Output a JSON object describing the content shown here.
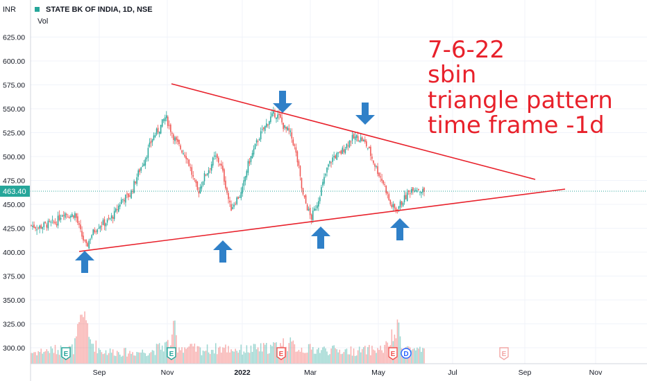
{
  "chart_data": {
    "type": "candlestick",
    "title": "STATE BK OF INDIA, 1D, NSE",
    "currency": "INR",
    "volume_label": "Vol",
    "ylim": [
      280,
      648
    ],
    "y_ticks": [
      300,
      325,
      350,
      375,
      400,
      425,
      450,
      475,
      500,
      525,
      550,
      575,
      600,
      625
    ],
    "y_tick_labels": [
      "300.00",
      "325.00",
      "350.00",
      "375.00",
      "400.00",
      "425.00",
      "450.00",
      "475.00",
      "500.00",
      "525.00",
      "550.00",
      "575.00",
      "600.00",
      "625.00"
    ],
    "x_labels": [
      "Sep",
      "Nov",
      "2022",
      "Mar",
      "May",
      "Jul",
      "Sep",
      "Nov"
    ],
    "last_price": 463.4,
    "last_price_label": "463.40",
    "price_path": [
      [
        0,
        428
      ],
      [
        10,
        426
      ],
      [
        22,
        429
      ],
      [
        35,
        431
      ],
      [
        45,
        442
      ],
      [
        55,
        438
      ],
      [
        62,
        440
      ],
      [
        70,
        420
      ],
      [
        78,
        405
      ],
      [
        85,
        418
      ],
      [
        95,
        428
      ],
      [
        108,
        432
      ],
      [
        118,
        440
      ],
      [
        128,
        455
      ],
      [
        140,
        460
      ],
      [
        150,
        480
      ],
      [
        162,
        500
      ],
      [
        172,
        520
      ],
      [
        182,
        530
      ],
      [
        190,
        542
      ],
      [
        198,
        527
      ],
      [
        205,
        515
      ],
      [
        212,
        508
      ],
      [
        220,
        500
      ],
      [
        228,
        480
      ],
      [
        236,
        462
      ],
      [
        244,
        478
      ],
      [
        252,
        488
      ],
      [
        260,
        500
      ],
      [
        268,
        492
      ],
      [
        275,
        470
      ],
      [
        282,
        445
      ],
      [
        290,
        455
      ],
      [
        298,
        462
      ],
      [
        306,
        490
      ],
      [
        314,
        505
      ],
      [
        322,
        520
      ],
      [
        330,
        530
      ],
      [
        338,
        540
      ],
      [
        345,
        545
      ],
      [
        352,
        540
      ],
      [
        358,
        530
      ],
      [
        366,
        525
      ],
      [
        372,
        512
      ],
      [
        378,
        490
      ],
      [
        384,
        460
      ],
      [
        390,
        448
      ],
      [
        396,
        435
      ],
      [
        404,
        450
      ],
      [
        412,
        470
      ],
      [
        420,
        490
      ],
      [
        428,
        500
      ],
      [
        436,
        502
      ],
      [
        444,
        510
      ],
      [
        452,
        518
      ],
      [
        460,
        520
      ],
      [
        468,
        518
      ],
      [
        476,
        510
      ],
      [
        484,
        495
      ],
      [
        492,
        482
      ],
      [
        500,
        470
      ],
      [
        508,
        450
      ],
      [
        516,
        444
      ],
      [
        524,
        452
      ],
      [
        532,
        460
      ],
      [
        540,
        468
      ],
      [
        548,
        466
      ],
      [
        556,
        463
      ]
    ],
    "volume_path": [
      [
        0,
        18
      ],
      [
        30,
        22
      ],
      [
        60,
        24
      ],
      [
        78,
        95
      ],
      [
        80,
        40
      ],
      [
        100,
        20
      ],
      [
        140,
        18
      ],
      [
        170,
        20
      ],
      [
        200,
        35
      ],
      [
        203,
        70
      ],
      [
        206,
        28
      ],
      [
        240,
        22
      ],
      [
        270,
        25
      ],
      [
        300,
        22
      ],
      [
        340,
        26
      ],
      [
        360,
        34
      ],
      [
        380,
        24
      ],
      [
        420,
        22
      ],
      [
        460,
        20
      ],
      [
        500,
        24
      ],
      [
        520,
        55
      ],
      [
        524,
        28
      ],
      [
        556,
        18
      ]
    ],
    "trendlines": [
      {
        "from": [
          "late Aug 2021",
          400
        ],
        "to": [
          "mid Sep 2022",
          464
        ]
      },
      {
        "from": [
          "mid Oct 2021",
          578
        ],
        "to": [
          "early Sep 2022",
          477
        ]
      }
    ],
    "arrows": [
      {
        "direction": "up"
      },
      {
        "direction": "up"
      },
      {
        "direction": "up"
      },
      {
        "direction": "up"
      },
      {
        "direction": "down"
      },
      {
        "direction": "down"
      }
    ],
    "event_markers": [
      {
        "letter": "E",
        "kind": "earnings-past"
      },
      {
        "letter": "E",
        "kind": "earnings-past"
      },
      {
        "letter": "E",
        "kind": "earnings-red"
      },
      {
        "letter": "E",
        "kind": "earnings-red"
      },
      {
        "letter": "D",
        "kind": "dividend"
      },
      {
        "letter": "E",
        "kind": "earnings-future"
      }
    ],
    "annotation_lines": [
      "7-6-22",
      "sbin",
      "triangle pattern",
      "time frame -1d"
    ],
    "colors": {
      "up": "#26a69a",
      "down": "#ef5350",
      "trendline": "#e8212b",
      "arrow": "#2f80c8",
      "price_badge": "#26a69a",
      "note": "#e8212b"
    }
  }
}
